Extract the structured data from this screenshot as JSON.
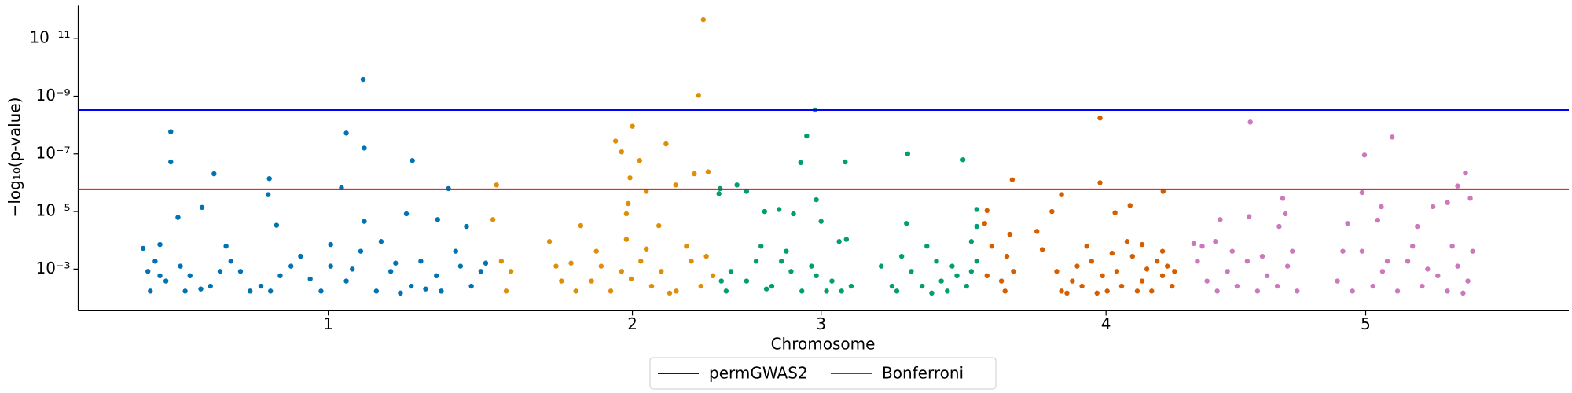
{
  "chart_data": {
    "type": "scatter",
    "xlabel": "Chromosome",
    "ylabel": "−log₁₀(p-value)",
    "xlim": [
      0,
      124
    ],
    "xticks": [
      {
        "value": 20.8,
        "label": "1"
      },
      {
        "value": 46.1,
        "label": "2"
      },
      {
        "value": 61.8,
        "label": "3"
      },
      {
        "value": 85.5,
        "label": "4"
      },
      {
        "value": 107.1,
        "label": "5"
      }
    ],
    "yscale": "log",
    "ylim": [
      0.028,
      6.8e-13
    ],
    "yticks": [
      {
        "value": 1e-11,
        "label": "10⁻¹¹"
      },
      {
        "value": 1e-09,
        "label": "10⁻⁹"
      },
      {
        "value": 1e-07,
        "label": "10⁻⁷"
      },
      {
        "value": 1e-05,
        "label": "10⁻⁵"
      },
      {
        "value": 0.001,
        "label": "10⁻³"
      }
    ],
    "grid": false,
    "legend": "bottom",
    "hlines": [
      {
        "name": "permGWAS2",
        "color": "#0000ff",
        "value": 3e-09
      },
      {
        "name": "Bonferroni",
        "color": "#ff0000",
        "value": 1.7e-06
      }
    ],
    "series": [
      {
        "color": "#0173b2",
        "x": [
          7.7,
          7.7,
          11.3,
          15.9,
          15.8,
          8.3,
          10.3,
          16.5,
          23.7,
          22.3,
          23.8,
          27.8,
          21.9,
          30.8,
          27.3,
          23.8,
          29.9,
          32.3,
          21,
          5.4,
          6.8,
          6.4,
          8.5,
          6,
          7.3,
          9.3,
          11,
          12.7,
          14.3,
          13.5,
          15.2,
          16.8,
          18.5,
          21,
          22.3,
          23.5,
          24.8,
          26,
          27.7,
          28.5,
          29.8,
          31.4,
          32.7,
          33.5,
          6.8,
          10.2,
          12.3,
          16,
          19.3,
          25.2,
          26.4,
          30.2,
          31.8,
          5.8,
          8.9,
          11.8,
          17.7,
          20.2,
          22.8,
          26.8,
          28.9,
          33.9
        ],
        "values": [
          1.7e-08,
          1.9e-07,
          4.9e-07,
          7.2e-07,
          2.6e-06,
          1.6e-05,
          7.2e-06,
          3e-05,
          2.6e-10,
          1.9e-08,
          6.3e-08,
          1.7e-07,
          1.5e-06,
          1.6e-06,
          1.2e-05,
          2.2e-05,
          1.9e-05,
          3.3e-05,
          0.00014,
          0.00019,
          0.00014,
          0.00053,
          0.00079,
          0.0058,
          0.0026,
          0.0017,
          0.0039,
          0.00053,
          0.0058,
          0.0012,
          0.0039,
          0.0017,
          0.00036,
          0.00079,
          0.0026,
          0.00024,
          0.0058,
          0.0012,
          0.0039,
          0.00053,
          0.0017,
          0.00024,
          0.0039,
          0.0012,
          0.0017,
          0.0049,
          0.00016,
          0.0058,
          0.0022,
          0.00011,
          0.00062,
          0.0058,
          0.00079,
          0.0012,
          0.0058,
          0.0012,
          0.00079,
          0.0058,
          0.001,
          0.0068,
          0.0049,
          0.00062
        ]
      },
      {
        "color": "#de8f05",
        "x": [
          34.8,
          34.5,
          35.2,
          36,
          35.6,
          39.2,
          41.8,
          52,
          51.6,
          46.1,
          44.7,
          45.2,
          48.9,
          46.7,
          45.9,
          47.25,
          49.7,
          51.25,
          52.4,
          45.75,
          45.6,
          48.3,
          45.6,
          43.5,
          41,
          40.2,
          41.4,
          42.7,
          44.3,
          45.2,
          46.8,
          47.7,
          48.5,
          49.75,
          51,
          51.8,
          52.8,
          50.6,
          43.1,
          39.75,
          46,
          52.25,
          47.25,
          49.2
        ],
        "values": [
          1.2e-06,
          1.9e-05,
          0.00053,
          0.0012,
          0.0058,
          0.00011,
          3.1e-05,
          2.2e-12,
          9.3e-10,
          1.1e-08,
          3.6e-08,
          8.5e-08,
          4.5e-08,
          1.7e-07,
          6.8e-07,
          2e-06,
          1.2e-06,
          4.9e-07,
          4.2e-07,
          5.3e-06,
          1.2e-05,
          3.1e-05,
          9.3e-05,
          0.00079,
          0.00062,
          0.0026,
          0.0058,
          0.0026,
          0.0058,
          0.0012,
          0.00053,
          0.0039,
          0.0012,
          0.0058,
          0.00053,
          0.0039,
          0.0017,
          0.00016,
          0.00024,
          0.00079,
          0.0022,
          0.00036,
          0.0002,
          0.0068
        ]
      },
      {
        "color": "#029e73",
        "x": [
          53.3,
          54.8,
          55.6,
          53.4,
          61.3,
          60.6,
          60.1,
          63.8,
          61.4,
          63.9,
          63.3,
          57.1,
          58.3,
          59.5,
          61.8,
          69,
          73.6,
          68.9,
          74.75,
          74.75,
          74.3,
          56.8,
          58.5,
          54.3,
          53.9,
          55.6,
          57.7,
          59.3,
          60.2,
          61,
          62.7,
          63.5,
          64.3,
          56.4,
          58.9,
          61.4,
          66.8,
          68.1,
          69.3,
          70.2,
          71.4,
          72.3,
          73.1,
          73.9,
          74.75,
          68.5,
          70.6,
          72.7,
          71.8,
          74.3,
          53.5,
          57.25,
          62.25,
          67.7,
          71
        ],
        "values": [
          2.4e-06,
          1.2e-06,
          2e-06,
          1.6e-06,
          3e-09,
          2.4e-08,
          2e-07,
          1.9e-07,
          3.9e-06,
          9.3e-05,
          0.00011,
          1e-05,
          8.5e-06,
          1.2e-05,
          2.2e-05,
          1e-07,
          1.6e-07,
          2.6e-05,
          8.5e-06,
          3.3e-05,
          0.00011,
          0.00016,
          0.00053,
          0.0012,
          0.0058,
          0.0026,
          0.0039,
          0.0012,
          0.0058,
          0.00079,
          0.0026,
          0.0058,
          0.0039,
          0.00053,
          0.00024,
          0.0017,
          0.00079,
          0.0058,
          0.0012,
          0.0039,
          0.00053,
          0.0058,
          0.0017,
          0.0039,
          0.00053,
          0.00036,
          0.00016,
          0.00079,
          0.0026,
          0.0012,
          0.0026,
          0.0049,
          0.0058,
          0.0039,
          0.0068
        ]
      },
      {
        "color": "#d55e00",
        "x": [
          77.7,
          75.6,
          75.4,
          76,
          75.6,
          76.8,
          77.25,
          77.8,
          77.1,
          77.5,
          79.75,
          80.2,
          81,
          81.8,
          85,
          86.25,
          87.5,
          85,
          90.25,
          88.5,
          90.2,
          90.6,
          81.4,
          81.8,
          82.7,
          83.5,
          84.3,
          85.2,
          85.6,
          86.4,
          86.8,
          87.7,
          88.5,
          89.3,
          90.2,
          91,
          83.9,
          87.25,
          83.1,
          86,
          88.9,
          82.25,
          84.75,
          88.1,
          89.75,
          91.2
        ],
        "values": [
          7.9e-07,
          9.3e-06,
          2.6e-05,
          0.00016,
          0.0017,
          0.0026,
          0.00036,
          0.0012,
          0.0058,
          6.2e-05,
          4.9e-05,
          0.00021,
          1e-05,
          2.6e-06,
          1e-06,
          1.1e-05,
          6.2e-06,
          5.7e-09,
          2e-06,
          0.00014,
          0.00024,
          0.00079,
          0.0012,
          0.0058,
          0.0026,
          0.0039,
          0.00053,
          0.0017,
          0.0058,
          0.0012,
          0.0039,
          0.00036,
          0.0026,
          0.0058,
          0.0017,
          0.0039,
          0.00016,
          0.00011,
          0.00079,
          0.00028,
          0.001,
          0.0068,
          0.0068,
          0.0058,
          0.00053,
          0.0012
        ]
      },
      {
        "color": "#cc78bc",
        "x": [
          92.8,
          94.6,
          97.4,
          95,
          100.2,
          100.4,
          99.9,
          97.5,
          109.3,
          107,
          106.8,
          108.4,
          114.75,
          115.4,
          115.8,
          113.9,
          105.6,
          108.1,
          111.4,
          112.7,
          93.1,
          93.9,
          94.75,
          95.6,
          96.4,
          97.25,
          98.1,
          98.9,
          99.75,
          100.6,
          101.4,
          93.5,
          96,
          98.5,
          101,
          104.75,
          106,
          106.8,
          107.7,
          108.5,
          109.75,
          110.6,
          111.8,
          113.1,
          113.9,
          114.75,
          115.6,
          116,
          105.2,
          111,
          114.3,
          108.9,
          112.25,
          115.2
        ],
        "values": [
          0.00013,
          0.00011,
          1.5e-05,
          1.9e-05,
          3.5e-06,
          1.2e-05,
          3.3e-05,
          7.9e-09,
          2.6e-08,
          1.1e-07,
          2.2e-06,
          6.8e-06,
          1.3e-06,
          4.6e-07,
          3.5e-06,
          4.9e-06,
          2.6e-05,
          2e-05,
          3.3e-05,
          6.8e-06,
          0.00053,
          0.0026,
          0.0058,
          0.0012,
          0.0039,
          0.00053,
          0.0058,
          0.0017,
          0.0039,
          0.00079,
          0.0058,
          0.00016,
          0.00024,
          0.00036,
          0.00024,
          0.0026,
          0.0058,
          0.00024,
          0.0039,
          0.0012,
          0.0058,
          0.00053,
          0.0039,
          0.0017,
          0.0058,
          0.00079,
          0.0026,
          0.00024,
          0.00024,
          0.00016,
          0.00016,
          0.00053,
          0.001,
          0.0068
        ]
      }
    ]
  }
}
